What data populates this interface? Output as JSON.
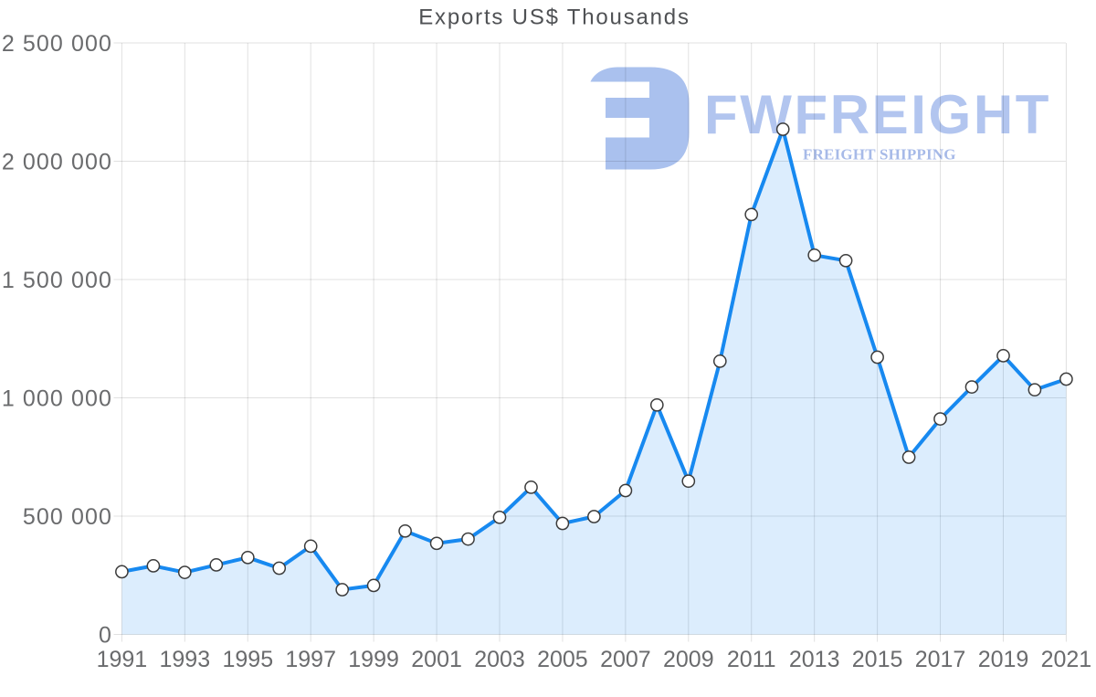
{
  "chart_data": {
    "type": "area",
    "title": "Exports US$ Thousands",
    "series_name": "Exports US$ Thousands",
    "x": [
      1991,
      1992,
      1993,
      1994,
      1995,
      1996,
      1997,
      1998,
      1999,
      2000,
      2001,
      2002,
      2003,
      2004,
      2005,
      2006,
      2007,
      2008,
      2009,
      2010,
      2011,
      2012,
      2013,
      2014,
      2015,
      2016,
      2017,
      2018,
      2019,
      2020,
      2021
    ],
    "values": [
      265000,
      290000,
      262000,
      294000,
      325000,
      280000,
      373000,
      189000,
      207000,
      437000,
      385000,
      403000,
      495000,
      622000,
      469000,
      498000,
      608000,
      970000,
      648000,
      1155000,
      1775000,
      2135000,
      1603000,
      1580000,
      1172000,
      749000,
      911000,
      1046000,
      1178000,
      1034000,
      1079000
    ],
    "xlabel": "",
    "ylabel": "",
    "xlim": [
      1991,
      2021
    ],
    "ylim": [
      0,
      2500000
    ],
    "x_tick_values": [
      1991,
      1993,
      1995,
      1997,
      1999,
      2001,
      2003,
      2005,
      2007,
      2009,
      2011,
      2013,
      2015,
      2017,
      2019,
      2021
    ],
    "x_tick_labels": [
      "1991",
      "1993",
      "1995",
      "1997",
      "1999",
      "2001",
      "2003",
      "2005",
      "2007",
      "2009",
      "2011",
      "2013",
      "2015",
      "2017",
      "2019",
      "2021"
    ],
    "y_tick_values": [
      0,
      500000,
      1000000,
      1500000,
      2000000,
      2500000
    ],
    "y_tick_labels": [
      "0",
      "500 000",
      "1 000 000",
      "1 500 000",
      "2 000 000",
      "2 500 000"
    ],
    "grid": true,
    "legend": false,
    "marker": "circle",
    "colors": {
      "line": "#1789f0",
      "area": "rgba(23,137,240,0.15)",
      "marker_fill": "#ffffff",
      "marker_stroke": "#3c3c3c",
      "grid": "rgba(0,0,0,0.12)",
      "title": "#4f5154",
      "tick_label": "#6a6b6d",
      "background": "#ffffff"
    }
  },
  "watermark": {
    "brand": "FWFREIGHT",
    "tagline": "FREIGHT SHIPPING",
    "logo_icon": "fwfreight-logo",
    "brand_color": "#b2c5ef",
    "logo_color": "#aac1ee",
    "tagline_color": "#a7bae8"
  }
}
